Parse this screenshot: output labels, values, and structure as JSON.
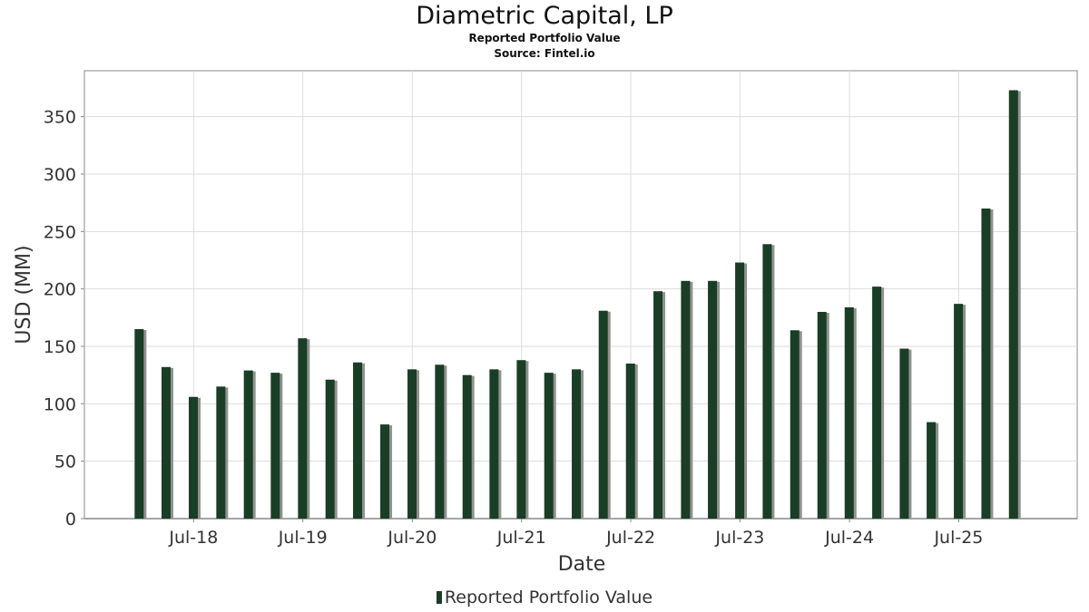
{
  "title": "Diametric Capital, LP",
  "subtitle": "Reported Portfolio Value",
  "source": "Source: Fintel.io",
  "colors": {
    "bar": "#1a3d25",
    "shadow": "#8f938d",
    "grid": "#dddddd",
    "axis": "#888888"
  },
  "chart_data": {
    "type": "bar",
    "xlabel": "Date",
    "ylabel": "USD (MM)",
    "ylim": [
      0,
      390
    ],
    "yticks": [
      0,
      50,
      100,
      150,
      200,
      250,
      300,
      350
    ],
    "xticks": [
      {
        "label": "Jul-18",
        "date": "2018-07-01"
      },
      {
        "label": "Jul-19",
        "date": "2019-07-01"
      },
      {
        "label": "Jul-20",
        "date": "2020-07-01"
      },
      {
        "label": "Jul-21",
        "date": "2021-07-01"
      },
      {
        "label": "Jul-22",
        "date": "2022-07-01"
      },
      {
        "label": "Jul-23",
        "date": "2023-07-01"
      },
      {
        "label": "Jul-24",
        "date": "2024-07-01"
      },
      {
        "label": "Jul-25",
        "date": "2025-07-01"
      }
    ],
    "xlim": [
      "2017-07-01",
      "2026-08-01"
    ],
    "grid": true,
    "legend_position": "bottom-center",
    "series": [
      {
        "name": "Reported Portfolio Value",
        "x": [
          "2017-12-31",
          "2018-03-31",
          "2018-06-30",
          "2018-09-30",
          "2018-12-31",
          "2019-03-31",
          "2019-06-30",
          "2019-09-30",
          "2019-12-31",
          "2020-03-31",
          "2020-06-30",
          "2020-09-30",
          "2020-12-31",
          "2021-03-31",
          "2021-06-30",
          "2021-09-30",
          "2021-12-31",
          "2022-03-31",
          "2022-06-30",
          "2022-09-30",
          "2022-12-31",
          "2023-03-31",
          "2023-06-30",
          "2023-09-30",
          "2023-12-31",
          "2024-03-31",
          "2024-06-30",
          "2024-09-30",
          "2024-12-31",
          "2025-03-31",
          "2025-06-30",
          "2025-09-30",
          "2025-12-31"
        ],
        "values": [
          165,
          132,
          106,
          115,
          129,
          127,
          157,
          121,
          136,
          82,
          130,
          134,
          125,
          130,
          138,
          127,
          130,
          181,
          135,
          198,
          207,
          207,
          223,
          239,
          164,
          180,
          184,
          202,
          148,
          84,
          187,
          270,
          373
        ]
      }
    ]
  }
}
